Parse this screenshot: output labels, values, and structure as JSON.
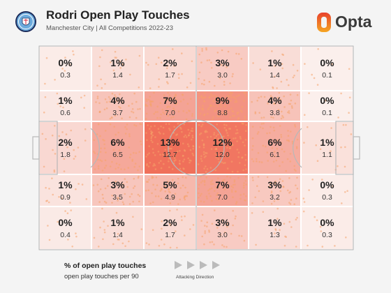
{
  "header": {
    "title": "Rodri Open Play Touches",
    "subtitle": "Manchester City | All Competitions 2022-23",
    "club_crest_icon": "manchester-city-crest-icon",
    "brand_logo_icon": "opta-logo-icon",
    "brand_name": "Opta",
    "brand_colors": [
      "#e8412c",
      "#f5a623"
    ]
  },
  "legend": {
    "primary": "% of open play touches",
    "secondary": "open play touches per 90",
    "direction_label": "Attacking Direction",
    "direction_icon": "play-arrows-icon"
  },
  "chart_data": {
    "type": "heatmap",
    "title": "Rodri Open Play Touches",
    "subtitle": "Manchester City | All Competitions 2022-23",
    "value_label_primary": "% of open play touches",
    "value_label_secondary": "open play touches per 90",
    "attacking_direction": "left-to-right",
    "rows": 5,
    "columns": 6,
    "color_low": "#fbf1ee",
    "color_high": "#f0705a",
    "percent_labels": [
      [
        "0%",
        "1%",
        "2%",
        "3%",
        "1%",
        "0%"
      ],
      [
        "1%",
        "4%",
        "7%",
        "9%",
        "4%",
        "0%"
      ],
      [
        "2%",
        "6%",
        "13%",
        "12%",
        "6%",
        "1%"
      ],
      [
        "1%",
        "3%",
        "5%",
        "7%",
        "3%",
        "0%"
      ],
      [
        "0%",
        "1%",
        "2%",
        "3%",
        "1%",
        "0%"
      ]
    ],
    "per90_labels": [
      [
        "0.3",
        "1.4",
        "1.7",
        "3.0",
        "1.4",
        "0.1"
      ],
      [
        "0.6",
        "3.7",
        "7.0",
        "8.8",
        "3.8",
        "0.1"
      ],
      [
        "1.8",
        "6.5",
        "12.7",
        "12.0",
        "6.1",
        "1.1"
      ],
      [
        "0.9",
        "3.5",
        "4.9",
        "7.0",
        "3.2",
        "0.3"
      ],
      [
        "0.4",
        "1.4",
        "1.7",
        "3.0",
        "1.3",
        "0.3"
      ]
    ],
    "per90_values": [
      [
        0.3,
        1.4,
        1.7,
        3.0,
        1.4,
        0.1
      ],
      [
        0.6,
        3.7,
        7.0,
        8.8,
        3.8,
        0.1
      ],
      [
        1.8,
        6.5,
        12.7,
        12.0,
        6.1,
        1.1
      ],
      [
        0.9,
        3.5,
        4.9,
        7.0,
        3.2,
        0.3
      ],
      [
        0.4,
        1.4,
        1.7,
        3.0,
        1.3,
        0.3
      ]
    ]
  }
}
